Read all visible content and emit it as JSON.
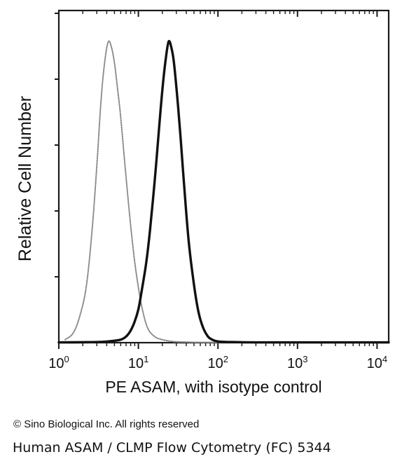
{
  "chart_data": {
    "type": "line",
    "title": "",
    "xlabel": "PE ASAM, with isotype control",
    "ylabel": "Relative Cell Number",
    "x_scale": "log",
    "xlim": [
      1,
      14000
    ],
    "ylim": [
      0,
      100
    ],
    "grid": false,
    "x_ticks": [
      {
        "base": "10",
        "exp": "0",
        "value": 1
      },
      {
        "base": "10",
        "exp": "1",
        "value": 10
      },
      {
        "base": "10",
        "exp": "2",
        "value": 100
      },
      {
        "base": "10",
        "exp": "3",
        "value": 1000
      },
      {
        "base": "10",
        "exp": "4",
        "value": 10000
      }
    ],
    "series": [
      {
        "style": "dotted-gray",
        "color": "#8a8a8a",
        "x": [
          1.2,
          1.5,
          1.8,
          2.2,
          2.6,
          3.0,
          3.4,
          3.8,
          4.2,
          4.6,
          5.0,
          5.5,
          6.0,
          6.8,
          7.5,
          8.5,
          9.5,
          11,
          13,
          16,
          20,
          25,
          30,
          40,
          60,
          100,
          1000,
          14000
        ],
        "y": [
          1,
          3,
          8,
          18,
          36,
          58,
          80,
          93,
          99,
          97,
          92,
          83,
          74,
          58,
          46,
          32,
          22,
          12,
          5,
          2,
          1,
          0.5,
          0.3,
          0.2,
          0.1,
          0.1,
          0.1,
          0.1
        ]
      },
      {
        "style": "solid-black",
        "color": "#111111",
        "x": [
          1,
          3,
          4.5,
          6,
          7,
          8,
          9,
          10,
          11,
          12.5,
          14,
          16,
          18,
          20,
          22,
          24,
          26,
          28,
          31,
          34,
          38,
          43,
          50,
          57,
          65,
          75,
          85,
          95,
          110,
          150,
          300,
          1000,
          14000
        ],
        "y": [
          0.1,
          0.2,
          0.5,
          1,
          2,
          4,
          7,
          11,
          17,
          26,
          37,
          53,
          69,
          83,
          93,
          99,
          97,
          92,
          80,
          67,
          50,
          33,
          19,
          10,
          5,
          2,
          1,
          0.5,
          0.3,
          0.2,
          0.1,
          0.1,
          0.1
        ]
      }
    ]
  },
  "footer": {
    "copyright": "© Sino Biological Inc. All rights reserved",
    "caption": "Human ASAM / CLMP Flow Cytometry (FC) 5344"
  }
}
